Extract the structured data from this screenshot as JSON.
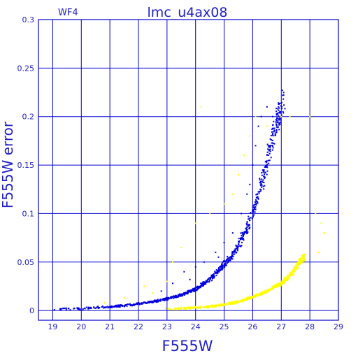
{
  "header": {
    "panel_label": "WF4",
    "title": "lmc_u4ax08"
  },
  "colors": {
    "axes": "#0000d0",
    "text": "#2020c8",
    "series_blue": "#0000e0",
    "series_yellow": "#ffff00",
    "background": "#ffffff"
  },
  "chart_data": {
    "type": "scatter",
    "title": "lmc_u4ax08",
    "subtitle": "WF4",
    "xlabel": "F555W",
    "ylabel": "F555W error",
    "xlim": [
      18.5,
      29.0
    ],
    "ylim": [
      -0.01,
      0.3
    ],
    "grid": true,
    "x_ticks": [
      19,
      20,
      21,
      22,
      23,
      24,
      25,
      26,
      27,
      28,
      29
    ],
    "y_ticks": [
      0,
      0.05,
      0.1,
      0.15,
      0.2,
      0.25,
      0.3
    ],
    "y_tick_labels": [
      "0",
      "0.05",
      "0.1",
      "0.15",
      "0.2",
      "0.25",
      "0.3"
    ],
    "series": [
      {
        "color": "#0000e0",
        "trend": [
          [
            19.0,
            0.001
          ],
          [
            19.5,
            0.0015
          ],
          [
            20.0,
            0.002
          ],
          [
            20.5,
            0.003
          ],
          [
            21.0,
            0.004
          ],
          [
            21.5,
            0.005
          ],
          [
            22.0,
            0.007
          ],
          [
            22.5,
            0.009
          ],
          [
            23.0,
            0.012
          ],
          [
            23.5,
            0.016
          ],
          [
            24.0,
            0.022
          ],
          [
            24.5,
            0.032
          ],
          [
            25.0,
            0.047
          ],
          [
            25.4,
            0.062
          ],
          [
            25.8,
            0.085
          ],
          [
            26.1,
            0.11
          ],
          [
            26.4,
            0.14
          ],
          [
            26.6,
            0.165
          ],
          [
            26.8,
            0.19
          ],
          [
            27.0,
            0.21
          ],
          [
            27.1,
            0.215
          ]
        ],
        "scatter": [
          [
            23.6,
            0.04
          ],
          [
            24.0,
            0.045
          ],
          [
            24.3,
            0.05
          ],
          [
            24.7,
            0.06
          ],
          [
            25.0,
            0.07
          ],
          [
            25.3,
            0.08
          ],
          [
            25.6,
            0.1
          ],
          [
            25.8,
            0.12
          ],
          [
            26.0,
            0.15
          ],
          [
            26.1,
            0.17
          ],
          [
            26.3,
            0.2
          ],
          [
            26.5,
            0.21
          ],
          [
            26.7,
            0.2
          ],
          [
            26.9,
            0.21
          ],
          [
            26.2,
            0.19
          ],
          [
            25.9,
            0.13
          ],
          [
            24.8,
            0.055
          ],
          [
            23.8,
            0.032
          ],
          [
            23.2,
            0.028
          ],
          [
            22.8,
            0.02
          ]
        ]
      },
      {
        "color": "#ffff00",
        "trend": [
          [
            22.8,
            0.001
          ],
          [
            23.5,
            0.002
          ],
          [
            24.0,
            0.003
          ],
          [
            24.5,
            0.004
          ],
          [
            25.0,
            0.006
          ],
          [
            25.5,
            0.009
          ],
          [
            26.0,
            0.014
          ],
          [
            26.5,
            0.02
          ],
          [
            27.0,
            0.028
          ],
          [
            27.3,
            0.036
          ],
          [
            27.6,
            0.048
          ],
          [
            27.8,
            0.055
          ]
        ],
        "scatter": [
          [
            21.5,
            0.013
          ],
          [
            22.5,
            0.018
          ],
          [
            23.0,
            0.03
          ],
          [
            23.5,
            0.065
          ],
          [
            24.0,
            0.09
          ],
          [
            24.5,
            0.1
          ],
          [
            25.0,
            0.11
          ],
          [
            25.3,
            0.12
          ],
          [
            25.5,
            0.14
          ],
          [
            25.7,
            0.16
          ],
          [
            25.9,
            0.18
          ],
          [
            26.1,
            0.2
          ],
          [
            26.5,
            0.19
          ],
          [
            26.8,
            0.205
          ],
          [
            27.0,
            0.2
          ],
          [
            27.3,
            0.2
          ],
          [
            28.0,
            0.2
          ],
          [
            28.2,
            0.1
          ],
          [
            28.4,
            0.09
          ],
          [
            28.5,
            0.08
          ],
          [
            28.3,
            0.06
          ],
          [
            24.2,
            0.21
          ],
          [
            23.2,
            0.05
          ],
          [
            22.2,
            0.025
          ],
          [
            20.8,
            0.008
          ]
        ]
      }
    ]
  }
}
